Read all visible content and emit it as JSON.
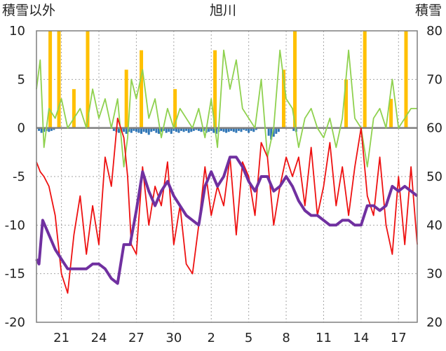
{
  "chart_data": {
    "type": "line",
    "title": "旭川",
    "y_left_label": "積雪以外",
    "y_right_label": "積雪",
    "y_left_lim": [
      -20,
      10
    ],
    "y_left_ticks": [
      "10",
      "5",
      "0",
      "-5",
      "-10",
      "-15",
      "-20"
    ],
    "y_right_lim": [
      20,
      80
    ],
    "y_right_ticks": [
      "80",
      "70",
      "60",
      "50",
      "40",
      "30",
      "20"
    ],
    "x_range_days": [
      0,
      30.5
    ],
    "x_ticks": [
      {
        "day": 2,
        "label": "21"
      },
      {
        "day": 5,
        "label": "24"
      },
      {
        "day": 8,
        "label": "27"
      },
      {
        "day": 11,
        "label": "30"
      },
      {
        "day": 14,
        "label": "2"
      },
      {
        "day": 17,
        "label": "5"
      },
      {
        "day": 20,
        "label": "8"
      },
      {
        "day": 23,
        "label": "11"
      },
      {
        "day": 26,
        "label": "14"
      },
      {
        "day": 29,
        "label": "17"
      }
    ],
    "grid": true,
    "colors": {
      "temperature": "#ee1111",
      "snow_depth": "#7030a0",
      "wind": "#8fd14f",
      "precipitation": "#ffc000",
      "below_zero_bars": "#2e75b6",
      "zero_line": "#7f7f7f",
      "grid": "#a6a6a6"
    },
    "series": [
      {
        "key": "temperature",
        "axis": "left",
        "x": [
          0,
          0.3,
          0.6,
          1,
          1.5,
          2,
          2.5,
          3,
          3.5,
          4,
          4.5,
          5,
          5.5,
          6,
          6.5,
          7,
          7.3,
          7.6,
          8,
          8.5,
          9,
          9.5,
          10,
          10.5,
          11,
          11.5,
          12,
          12.5,
          13,
          13.5,
          14,
          14.5,
          15,
          15.5,
          16,
          16.5,
          17,
          17.5,
          18,
          18.5,
          19,
          19.5,
          20,
          20.5,
          21,
          21.5,
          22,
          22.5,
          23,
          23.5,
          24,
          24.5,
          25,
          25.5,
          26,
          26.5,
          27,
          27.5,
          28,
          28.5,
          29,
          29.5,
          30,
          30.5
        ],
        "values": [
          -3.5,
          -4.5,
          -5,
          -6,
          -9,
          -15,
          -17,
          -11,
          -7,
          -13,
          -8,
          -12,
          -3,
          -6,
          1,
          -1,
          -5,
          -12,
          -13,
          -4,
          -10,
          -6,
          -8,
          -3.5,
          -12,
          -8,
          -14,
          -15,
          -10,
          -4,
          -9,
          -6,
          -8,
          -3,
          -11,
          -3.5,
          -5,
          -9,
          -1.5,
          -3,
          -10,
          -6,
          -3,
          -5,
          -3,
          -8,
          -2,
          -9,
          -6,
          -1.5,
          -8,
          -4,
          -9,
          -4,
          0,
          -7,
          -9,
          -3,
          -10,
          -13,
          -5,
          -12,
          -4,
          -12
        ]
      },
      {
        "key": "snow_depth",
        "axis": "right",
        "x": [
          0,
          0.2,
          0.5,
          1,
          1.5,
          2,
          2.5,
          3,
          3.5,
          4,
          4.5,
          5,
          5.5,
          6,
          6.5,
          7,
          7.5,
          8,
          8.5,
          9,
          9.5,
          10,
          10.5,
          11,
          11.5,
          12,
          12.5,
          13,
          13.5,
          14,
          14.5,
          15,
          15.5,
          16,
          16.5,
          17,
          17.5,
          18,
          18.5,
          19,
          19.5,
          20,
          20.5,
          21,
          21.5,
          22,
          22.5,
          23,
          23.5,
          24,
          24.5,
          25,
          25.5,
          26,
          26.5,
          27,
          27.5,
          28,
          28.5,
          29,
          29.5,
          30,
          30.5
        ],
        "values": [
          33,
          32,
          41,
          38,
          35,
          33,
          31,
          31,
          31,
          31,
          32,
          32,
          31,
          29,
          28,
          36,
          36,
          43,
          51,
          47,
          44,
          47,
          49,
          46,
          44,
          42,
          41,
          40,
          48,
          51,
          48,
          50,
          54,
          54,
          52,
          49,
          47,
          50,
          50,
          47,
          48,
          50,
          48,
          45,
          43,
          42,
          42,
          41,
          40,
          40,
          41,
          41,
          40,
          40,
          44,
          44,
          43,
          44,
          48,
          47,
          48,
          47,
          46
        ]
      },
      {
        "key": "wind",
        "axis": "left",
        "x": [
          0,
          0.3,
          0.6,
          1,
          1.5,
          2,
          2.5,
          3,
          3.5,
          4,
          4.5,
          5,
          5.5,
          6,
          6.5,
          7,
          7.3,
          7.6,
          8,
          8.5,
          9,
          9.5,
          10,
          10.5,
          11,
          11.5,
          12,
          12.5,
          13,
          13.5,
          14,
          14.5,
          15,
          15.5,
          16,
          16.5,
          17,
          17.5,
          18,
          18.5,
          19,
          19.5,
          20,
          20.5,
          21,
          21.5,
          22,
          22.5,
          23,
          23.5,
          24,
          24.5,
          25,
          25.5,
          26,
          26.5,
          27,
          27.5,
          28,
          28.5,
          29,
          29.5,
          30,
          30.5
        ],
        "values": [
          4,
          7,
          -2,
          2,
          1,
          3,
          0,
          1,
          2,
          0,
          4,
          1,
          3,
          0,
          3,
          -4,
          -1,
          5,
          3,
          6,
          1,
          3,
          -1,
          2,
          0,
          2,
          1,
          0,
          2,
          -1,
          3,
          -2,
          8,
          4,
          7,
          2,
          1,
          0,
          5,
          -3,
          0,
          8,
          3,
          2,
          -2,
          1,
          2,
          0,
          -1,
          1,
          -2,
          1,
          8,
          1,
          0,
          -4,
          1,
          2,
          0,
          5,
          0,
          1,
          2,
          2
        ]
      },
      {
        "key": "precipitation",
        "axis": "left",
        "type": "bar",
        "x": [
          1.1,
          1.8,
          3,
          4.1,
          7.2,
          8.4,
          11.1,
          14.3,
          19.8,
          20.7,
          24.8,
          26.3,
          28.4,
          29.6
        ],
        "values": [
          10,
          10,
          4,
          10,
          6,
          8,
          4,
          8,
          6,
          10,
          5,
          10,
          3,
          10
        ]
      },
      {
        "key": "below_zero",
        "axis": "left",
        "type": "bar",
        "x": [
          0.2,
          0.4,
          0.6,
          0.8,
          1,
          1.2,
          1.4,
          6.2,
          6.4,
          6.6,
          6.8,
          7,
          7.2,
          7.4,
          7.6,
          7.8,
          8,
          8.2,
          8.4,
          8.6,
          8.8,
          9,
          9.2,
          9.4,
          9.6,
          9.8,
          10,
          10.2,
          10.4,
          10.6,
          10.8,
          11,
          11.2,
          11.4,
          11.6,
          11.8,
          12,
          12.2,
          12.4,
          12.6,
          12.8,
          13,
          13.2,
          13.4,
          13.6,
          13.8,
          14,
          14.2,
          14.4,
          14.6,
          14.8,
          15,
          15.2,
          15.4,
          15.6,
          15.8,
          16,
          16.2,
          16.4,
          16.6,
          16.8,
          17,
          17.2,
          17.4,
          17.6,
          18.6,
          18.8,
          19,
          19.2,
          19.4,
          20.6,
          20.8
        ],
        "values": [
          -0.3,
          -0.5,
          -0.4,
          -0.3,
          -0.4,
          -0.3,
          -0.2,
          -0.3,
          -0.4,
          -0.5,
          -0.3,
          -0.4,
          -0.6,
          -0.4,
          -0.5,
          -0.3,
          -0.4,
          -0.5,
          -0.6,
          -0.4,
          -0.5,
          -0.7,
          -0.4,
          -0.3,
          -0.5,
          -0.6,
          -0.4,
          -0.3,
          -0.5,
          -0.4,
          -0.6,
          -0.3,
          -0.4,
          -0.5,
          -0.3,
          -0.4,
          -0.3,
          -0.5,
          -0.4,
          -0.3,
          -0.2,
          -0.3,
          -0.4,
          -0.3,
          -0.5,
          -0.4,
          -0.3,
          -0.5,
          -0.6,
          -0.4,
          -0.3,
          -0.4,
          -0.5,
          -0.4,
          -0.3,
          -0.4,
          -0.5,
          -0.3,
          -0.4,
          -0.2,
          -0.3,
          -0.5,
          -0.3,
          -0.4,
          -0.2,
          -0.8,
          -1.2,
          -0.9,
          -0.6,
          -0.4,
          -0.3,
          -0.4
        ]
      }
    ]
  }
}
